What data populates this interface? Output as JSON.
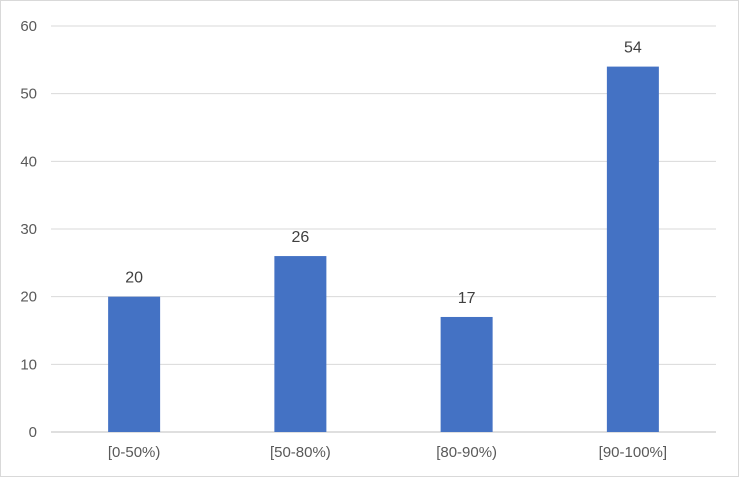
{
  "chart_data": {
    "type": "bar",
    "categories": [
      "[0-50%)",
      "[50-80%)",
      "[80-90%)",
      "[90-100%]"
    ],
    "values": [
      20,
      26,
      17,
      54
    ],
    "data_labels": [
      "20",
      "26",
      "17",
      "54"
    ],
    "y_ticks": [
      "0",
      "10",
      "20",
      "30",
      "40",
      "50",
      "60"
    ],
    "ylim": [
      0,
      60
    ],
    "grid": true,
    "legend": "none",
    "bar_color": "#4472c4"
  }
}
